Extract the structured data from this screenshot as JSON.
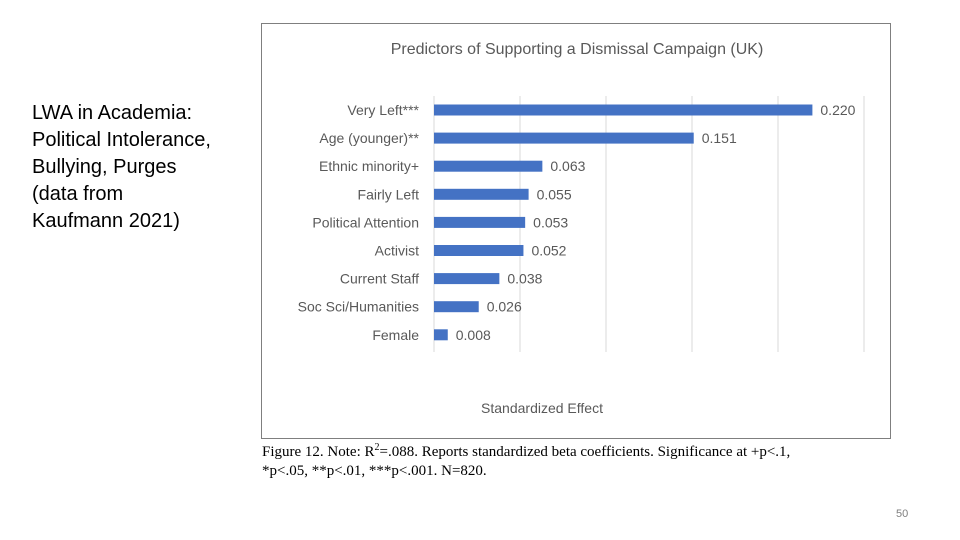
{
  "slide": {
    "side_title_lines": [
      "LWA in Academia:",
      "Political Intolerance,",
      "Bullying, Purges",
      "(data from",
      "Kaufmann 2021)"
    ],
    "caption": {
      "prefix": "Figure 12. Note: R",
      "superscript": "2",
      "rest_line1": "=.088. Reports standardized beta coefficients. Significance at +p<.1,",
      "line2": "*p<.05, **p<.01, ***p<.001. N=820."
    },
    "page_number": "50"
  },
  "chart_data": {
    "type": "bar",
    "orientation": "horizontal",
    "title": "Predictors of Supporting a Dismissal Campaign (UK)",
    "xlabel": "Standardized Effect",
    "ylabel": "",
    "categories": [
      "Very Left***",
      "Age (younger)**",
      "Ethnic minority+",
      "Fairly Left",
      "Political Attention",
      "Activist",
      "Current Staff",
      "Soc Sci/Humanities",
      "Female"
    ],
    "values": [
      0.22,
      0.151,
      0.063,
      0.055,
      0.053,
      0.052,
      0.038,
      0.026,
      0.008
    ],
    "value_labels": [
      "0.220",
      "0.151",
      "0.063",
      "0.055",
      "0.053",
      "0.052",
      "0.038",
      "0.026",
      "0.008"
    ],
    "xlim": [
      0,
      0.25
    ],
    "gridlines": [
      0.05,
      0.1,
      0.15,
      0.2,
      0.25
    ],
    "grid": true,
    "bar_color": "#4472c4",
    "grid_color": "#d9d9d9",
    "text_color": "#595959"
  }
}
